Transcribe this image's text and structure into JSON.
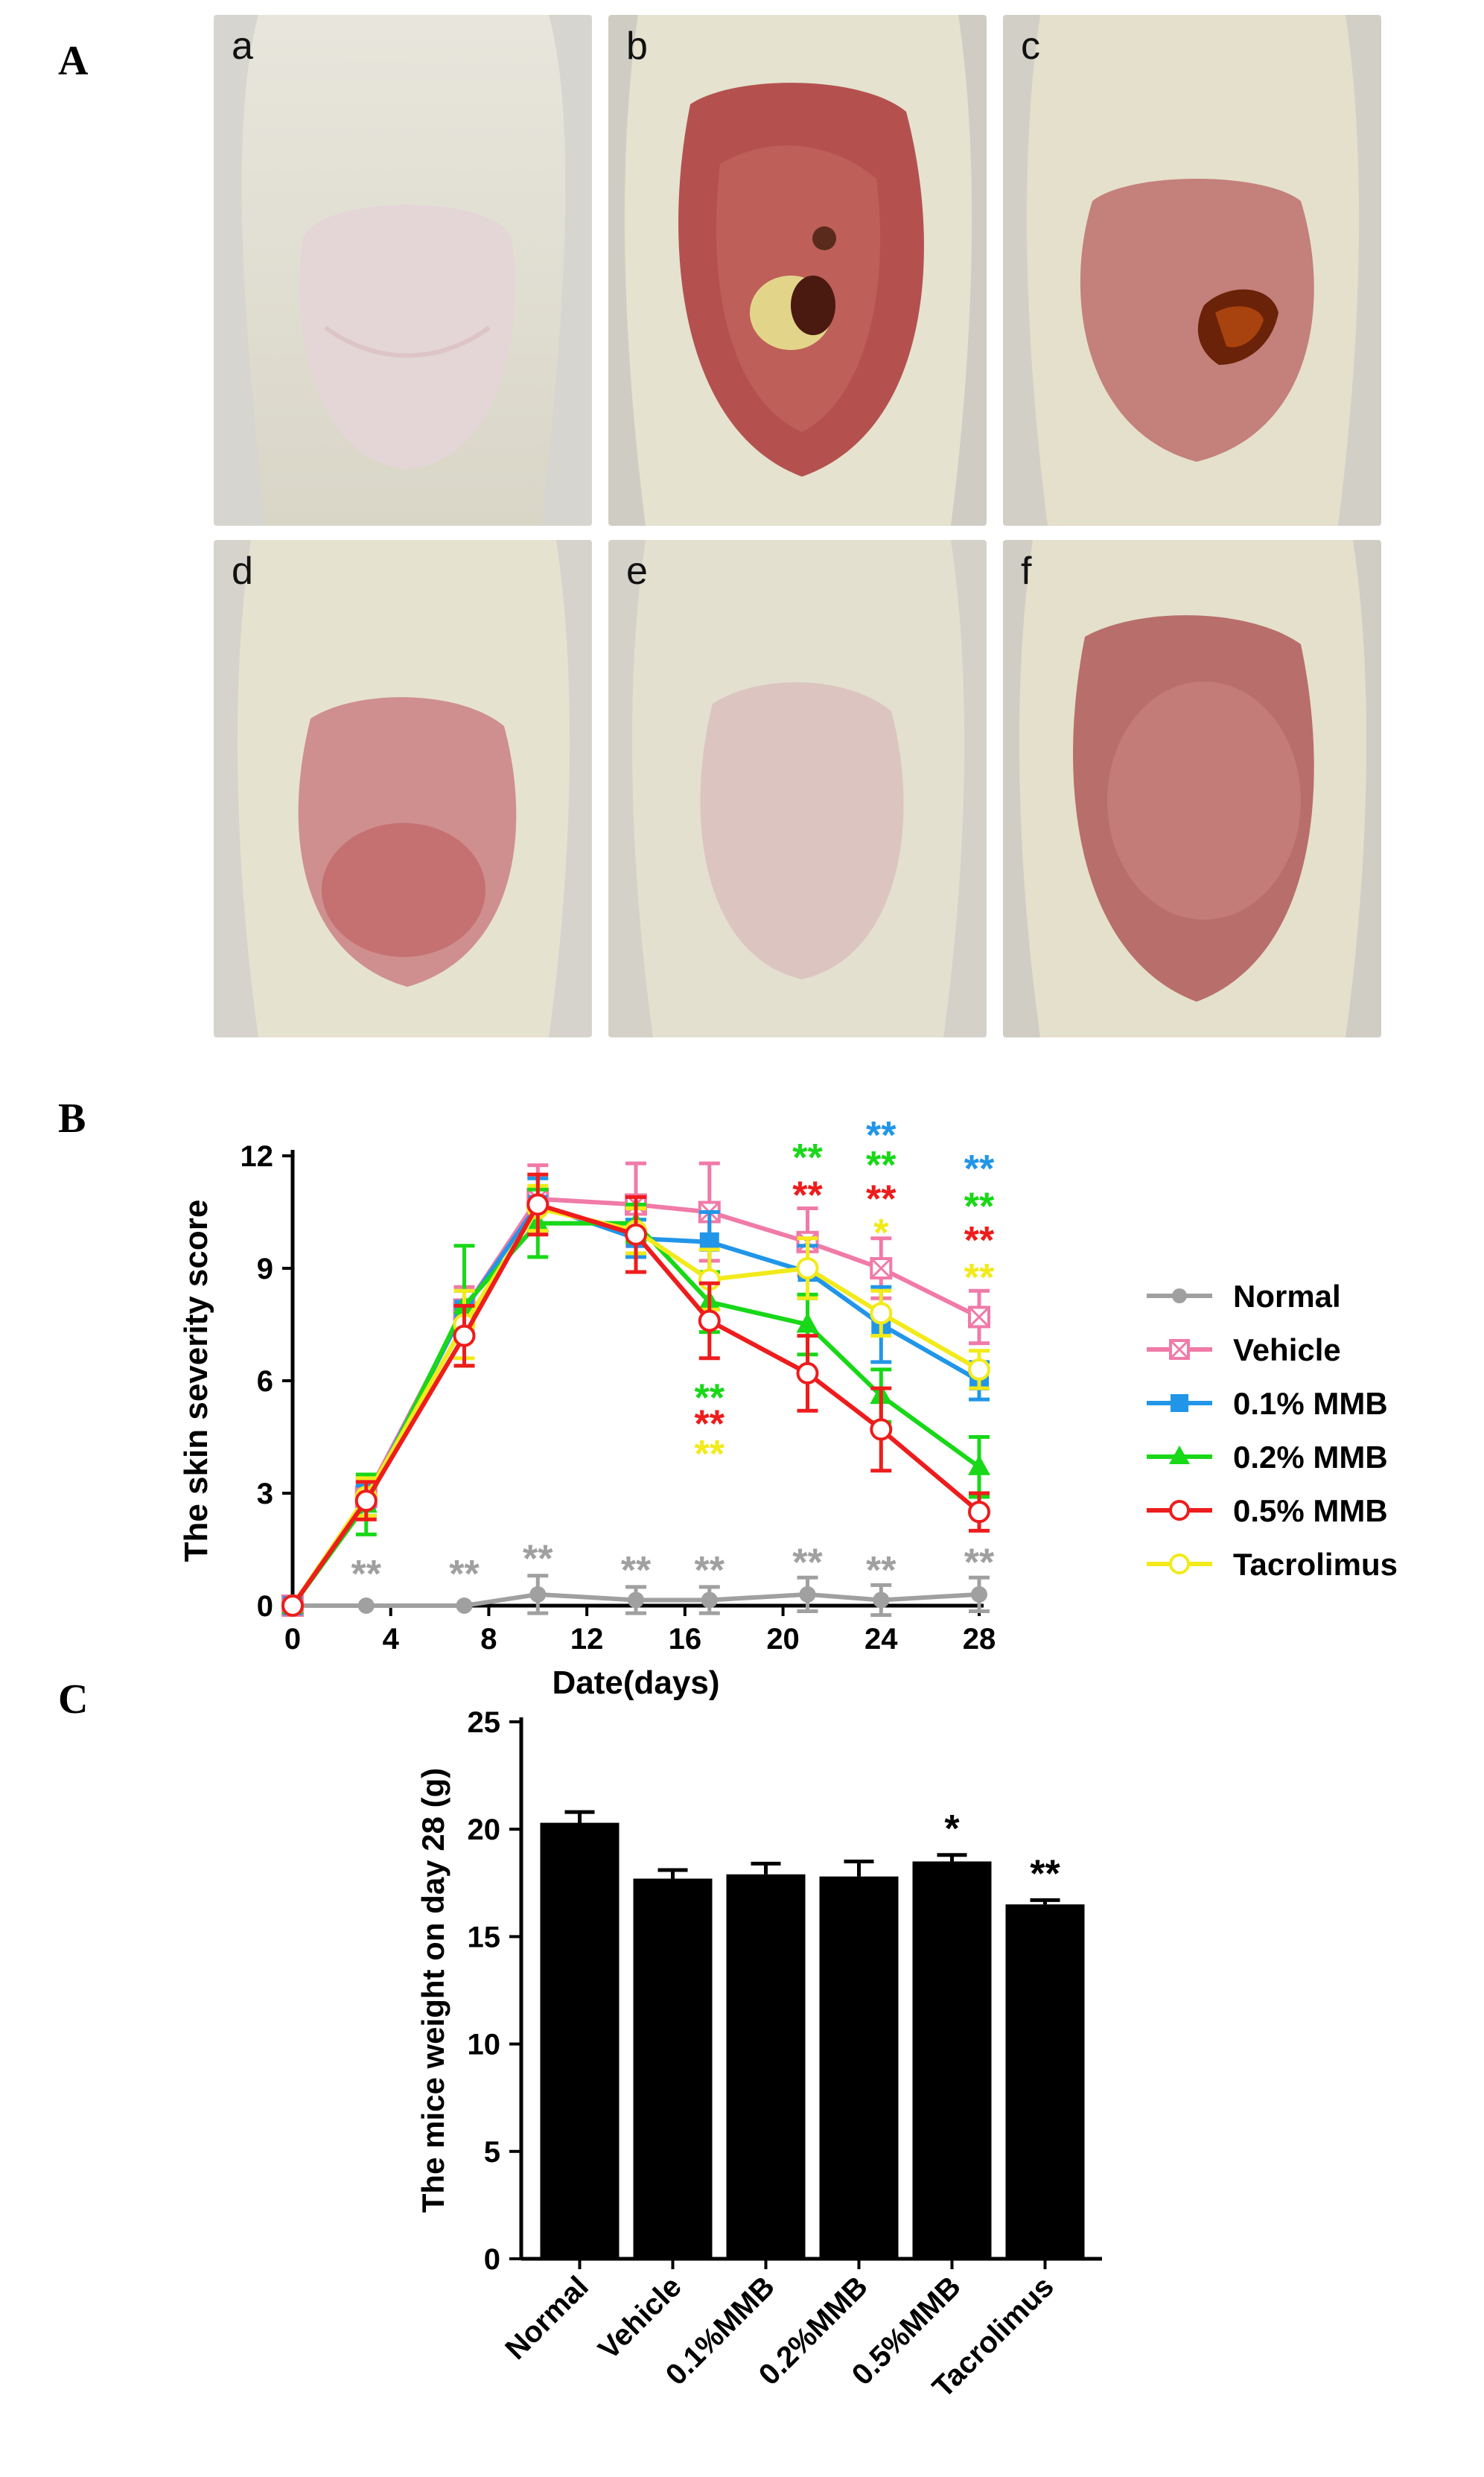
{
  "panels": {
    "a": "A",
    "b": "B",
    "c": "C"
  },
  "photos": [
    {
      "label": "a"
    },
    {
      "label": "b"
    },
    {
      "label": "c"
    },
    {
      "label": "d"
    },
    {
      "label": "e"
    },
    {
      "label": "f"
    }
  ],
  "chart_data": [
    {
      "type": "line",
      "xlabel": "Date(days)",
      "ylabel": "The skin severity score",
      "xlim": [
        0,
        28
      ],
      "ylim": [
        0,
        12
      ],
      "xticks": [
        0,
        4,
        8,
        12,
        16,
        20,
        24,
        28
      ],
      "yticks": [
        0,
        3,
        6,
        9,
        12
      ],
      "legend_position": "right",
      "x": [
        0,
        3,
        7,
        10,
        14,
        17,
        21,
        24,
        28
      ],
      "series": [
        {
          "name": "Normal",
          "color": "#a0a0a0",
          "marker": "circle-filled",
          "values": [
            0,
            0,
            0,
            0.3,
            0.15,
            0.15,
            0.3,
            0.15,
            0.3
          ],
          "errors": [
            0,
            0,
            0,
            0.5,
            0.35,
            0.35,
            0.45,
            0.4,
            0.45
          ]
        },
        {
          "name": "Vehicle",
          "color": "#f07aa8",
          "marker": "square-crossed",
          "values": [
            0,
            2.9,
            7.9,
            10.85,
            10.7,
            10.5,
            9.7,
            9.0,
            7.7
          ],
          "errors": [
            0,
            0.5,
            0.6,
            0.9,
            1.1,
            1.3,
            0.9,
            0.8,
            0.7
          ]
        },
        {
          "name": "0.1% MMB",
          "color": "#2196e8",
          "marker": "square-filled",
          "values": [
            0,
            2.8,
            7.9,
            10.7,
            9.8,
            9.7,
            8.9,
            7.5,
            6.0
          ],
          "errors": [
            0,
            0.4,
            0.5,
            0.7,
            0.5,
            0.8,
            0.7,
            1.0,
            0.5
          ]
        },
        {
          "name": "0.2% MMB",
          "color": "#18d818",
          "marker": "triangle-filled",
          "values": [
            0,
            2.7,
            8.0,
            10.2,
            10.2,
            8.1,
            7.5,
            5.6,
            3.7
          ],
          "errors": [
            0,
            0.8,
            1.6,
            0.9,
            0.5,
            0.8,
            0.8,
            0.7,
            0.8
          ]
        },
        {
          "name": "0.5% MMB",
          "color": "#ee1c1c",
          "marker": "circle-open",
          "values": [
            0,
            2.8,
            7.2,
            10.7,
            9.9,
            7.6,
            6.2,
            4.7,
            2.5
          ],
          "errors": [
            0,
            0.5,
            0.8,
            0.8,
            1.0,
            1.0,
            1.0,
            1.1,
            0.5
          ]
        },
        {
          "name": "Tacrolimus",
          "color": "#f2ea1a",
          "marker": "circle-open",
          "values": [
            0,
            2.9,
            7.5,
            10.6,
            10.0,
            8.7,
            9.0,
            7.8,
            6.3
          ],
          "errors": [
            0,
            0.5,
            0.9,
            0.6,
            0.6,
            0.8,
            0.8,
            0.6,
            0.5
          ]
        }
      ],
      "annotations": [
        {
          "x": 3,
          "y": 0.5,
          "text": "**",
          "color": "#a0a0a0"
        },
        {
          "x": 7,
          "y": 0.5,
          "text": "**",
          "color": "#a0a0a0"
        },
        {
          "x": 10,
          "y": 0.9,
          "text": "**",
          "color": "#a0a0a0"
        },
        {
          "x": 14,
          "y": 0.6,
          "text": "**",
          "color": "#a0a0a0"
        },
        {
          "x": 17,
          "y": 0.6,
          "text": "**",
          "color": "#a0a0a0"
        },
        {
          "x": 21,
          "y": 0.8,
          "text": "**",
          "color": "#a0a0a0"
        },
        {
          "x": 24,
          "y": 0.6,
          "text": "**",
          "color": "#a0a0a0"
        },
        {
          "x": 28,
          "y": 0.8,
          "text": "**",
          "color": "#a0a0a0"
        },
        {
          "x": 17,
          "y": 5.2,
          "text": "**",
          "color": "#18d818"
        },
        {
          "x": 17,
          "y": 4.5,
          "text": "**",
          "color": "#ee1c1c"
        },
        {
          "x": 17,
          "y": 3.7,
          "text": "**",
          "color": "#f2ea1a"
        },
        {
          "x": 21,
          "y": 11.6,
          "text": "**",
          "color": "#18d818"
        },
        {
          "x": 21,
          "y": 10.6,
          "text": "**",
          "color": "#ee1c1c"
        },
        {
          "x": 24,
          "y": 12.2,
          "text": "**",
          "color": "#2196e8"
        },
        {
          "x": 24,
          "y": 11.4,
          "text": "**",
          "color": "#18d818"
        },
        {
          "x": 24,
          "y": 10.5,
          "text": "**",
          "color": "#ee1c1c"
        },
        {
          "x": 24,
          "y": 9.6,
          "text": "*",
          "color": "#f2ea1a"
        },
        {
          "x": 28,
          "y": 11.3,
          "text": "**",
          "color": "#2196e8"
        },
        {
          "x": 28,
          "y": 10.3,
          "text": "**",
          "color": "#18d818"
        },
        {
          "x": 28,
          "y": 9.4,
          "text": "**",
          "color": "#ee1c1c"
        },
        {
          "x": 28,
          "y": 8.4,
          "text": "**",
          "color": "#f2ea1a"
        }
      ]
    },
    {
      "type": "bar",
      "ylabel": "The mice weight on day 28 (g)",
      "ylim": [
        0,
        25
      ],
      "yticks": [
        0,
        5,
        10,
        15,
        20,
        25
      ],
      "categories": [
        "Normal",
        "Vehicle",
        "0.1%MMB",
        "0.2%MMB",
        "0.5%MMB",
        "Tacrolimus"
      ],
      "values": [
        20.3,
        17.7,
        17.9,
        17.8,
        18.5,
        16.5
      ],
      "errors": [
        0.5,
        0.4,
        0.5,
        0.7,
        0.3,
        0.2
      ],
      "labels": [
        "",
        "",
        "",
        "",
        "*",
        "**"
      ],
      "color": "#000000"
    }
  ]
}
